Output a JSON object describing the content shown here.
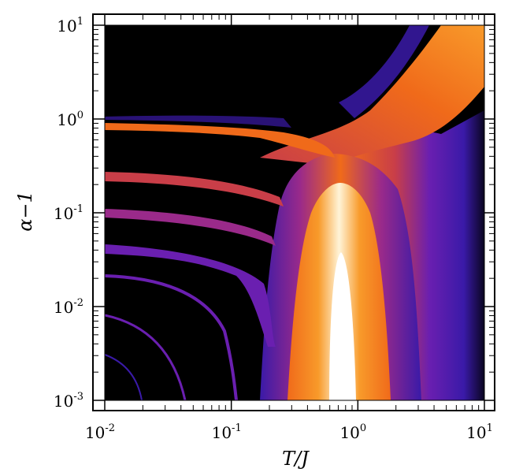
{
  "chart_data": {
    "type": "heatmap",
    "xlabel": "T/J",
    "ylabel": "α−1",
    "xscale": "log",
    "yscale": "log",
    "xlim": [
      0.01,
      10
    ],
    "ylim": [
      0.001,
      10
    ],
    "x_ticks": [
      {
        "base": "10",
        "exp": "-2",
        "value": 0.01
      },
      {
        "base": "10",
        "exp": "-1",
        "value": 0.1
      },
      {
        "base": "10",
        "exp": "0",
        "value": 1
      },
      {
        "base": "10",
        "exp": "1",
        "value": 10
      }
    ],
    "y_ticks": [
      {
        "base": "10",
        "exp": "-3",
        "value": 0.001
      },
      {
        "base": "10",
        "exp": "-2",
        "value": 0.01
      },
      {
        "base": "10",
        "exp": "-1",
        "value": 0.1
      },
      {
        "base": "10",
        "exp": "0",
        "value": 1
      },
      {
        "base": "10",
        "exp": "1",
        "value": 10
      }
    ],
    "colormap": [
      "#000000",
      "#1a0a3c",
      "#3a1aa8",
      "#6a1fb0",
      "#9a2a8a",
      "#c93e48",
      "#f06a1a",
      "#f89a2a",
      "#fbd07a",
      "#fff4d8",
      "#ffffff"
    ],
    "features": [
      {
        "name": "central-peak",
        "x": 0.72,
        "y_max": 0.036
      },
      {
        "name": "main-ridge",
        "x_range": [
          0.3,
          1.0
        ]
      },
      {
        "name": "upper-right-ridge",
        "x_range": [
          1.5,
          10
        ],
        "y_range": [
          1,
          10
        ]
      },
      {
        "name": "branch-1",
        "y": 0.8
      },
      {
        "name": "branch-2",
        "y": 0.25
      },
      {
        "name": "branch-3",
        "y": 0.1
      },
      {
        "name": "branch-4",
        "y": 0.04
      }
    ]
  }
}
